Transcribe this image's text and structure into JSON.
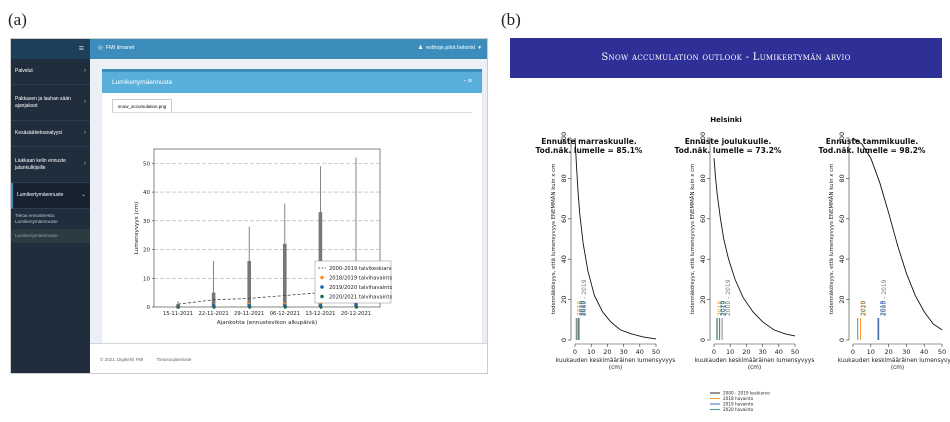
{
  "labels": {
    "a": "(a)",
    "b": "(b)"
  },
  "panel_a": {
    "sidebar": {
      "toggle_icon": "hamburger-icon",
      "items": [
        {
          "label": "Palvelut"
        },
        {
          "label": "Pakkasen ja lauhan sään ajanjaksot"
        },
        {
          "label": "Kesäsäätietoanalyysi"
        },
        {
          "label": "Liukkaan kelin ennuste jalankulkijoille"
        },
        {
          "label": "Lumikertymäennuste"
        }
      ],
      "subitems": [
        {
          "label": "Tietoa ennusteesta: Lumikertymäennuste"
        },
        {
          "label": "Lumikertymäennuste"
        }
      ]
    },
    "topbar": {
      "app_name": "FMI ilmanet",
      "user": "esthoje.pilot.helsinki"
    },
    "box": {
      "title": "Lumikertymäennuste",
      "tools": "- ≡",
      "file_tab": "snow_accumulation.png"
    },
    "footer": {
      "copyright": "© 2021. Digikehit FMI",
      "privacy": "Tietosuojaseloste"
    },
    "chart_data": {
      "type": "box",
      "categories": [
        "15-11-2021",
        "22-11-2021",
        "29-11-2021",
        "06-12-2021",
        "13-12-2021",
        "20-12-2021"
      ],
      "xlabel": "Ajankohta (ennustevikon alkupäivä)",
      "ylabel": "Lumensyvyys (cm)",
      "ylim": [
        0,
        55
      ],
      "yticks": [
        0,
        10,
        20,
        30,
        40,
        50
      ],
      "whisker_max": [
        2,
        16,
        28,
        36,
        49,
        52
      ],
      "box_upper": [
        1,
        5,
        16,
        22,
        33,
        13
      ],
      "median": [
        0,
        1,
        1,
        1,
        1,
        1
      ],
      "series": [
        {
          "name": "2000-2019 talvikeskiarvo",
          "values": [
            1,
            2.5,
            3,
            4,
            5,
            8
          ],
          "color": "#444444",
          "style": "dashed"
        },
        {
          "name": "2018/2019 talvihavainto",
          "values": [
            0,
            0.5,
            1,
            1,
            1.5,
            3
          ],
          "color": "#ff8c1a"
        },
        {
          "name": "2019/2020 talvihavainto",
          "values": [
            0,
            0.5,
            0.5,
            0.5,
            0.5,
            1
          ],
          "color": "#1f5fbf"
        },
        {
          "name": "2020/2021 talvihavainto",
          "values": [
            0,
            0,
            0,
            0,
            0,
            0
          ],
          "color": "#1a6f50"
        }
      ],
      "grid": "dashed horizontal",
      "legend_position": "bottom-right"
    }
  },
  "panel_b": {
    "banner": "Snow accumulation outlook - Lumikertymän arvio",
    "city": "Helsinki",
    "chart_data": [
      {
        "type": "line",
        "title": "Ennuste marraskuulle.",
        "subtitle": "Tod.näk. lumelle = 85.1%",
        "xlabel": "kuukauden keskimääräinen lumensyvyys (cm)",
        "ylabel": "todennäköisyys, että lumensyvyys ENEMMÄN kuin x cm",
        "xlim": [
          0,
          50
        ],
        "ylim": [
          0,
          100
        ],
        "x": [
          0,
          1,
          2,
          3,
          5,
          8,
          12,
          17,
          22,
          28,
          35,
          42,
          50
        ],
        "y": [
          100,
          85,
          72,
          62,
          48,
          34,
          22,
          14,
          9,
          5,
          3,
          1.5,
          0.5
        ],
        "vlines": [
          {
            "name": "2000 - 2019",
            "x": 2,
            "color": "#777777"
          },
          {
            "name": "2018",
            "x": 1,
            "color": "#ff8c1a"
          },
          {
            "name": "2019",
            "x": 2,
            "color": "#2a5db0"
          },
          {
            "name": "2020",
            "x": 0,
            "color": "#3a8f8f"
          }
        ]
      },
      {
        "type": "line",
        "title": "Ennuste joulukuulle.",
        "subtitle": "Tod.näk. lumelle = 73.2%",
        "xlabel": "kuukauden keskimääräinen lumensyvyys (cm)",
        "ylabel": "todennäköisyys, että lumensyvyys ENEMMÄN kuin x cm",
        "xlim": [
          0,
          50
        ],
        "ylim": [
          0,
          100
        ],
        "x": [
          0,
          1,
          2,
          4,
          6,
          9,
          13,
          18,
          24,
          30,
          37,
          44,
          50
        ],
        "y": [
          90,
          80,
          72,
          60,
          50,
          40,
          30,
          21,
          14,
          9,
          5,
          3,
          2
        ],
        "vlines": [
          {
            "name": "2000 - 2019",
            "x": 5,
            "color": "#777777"
          },
          {
            "name": "2018",
            "x": 2,
            "color": "#ff8c1a"
          },
          {
            "name": "2019",
            "x": 3,
            "color": "#2a5db0"
          },
          {
            "name": "2020",
            "x": 1,
            "color": "#3a8f8f"
          }
        ]
      },
      {
        "type": "line",
        "title": "Ennuste tammikuulle.",
        "subtitle": "Tod.näk. lumelle = 98.2%",
        "xlabel": "kuukauden keskimääräinen lumensyvyys (cm)",
        "ylabel": "todennäköisyys, että lumensyvyys ENEMMÄN kuin x cm",
        "xlim": [
          0,
          50
        ],
        "ylim": [
          0,
          100
        ],
        "x": [
          0,
          5,
          10,
          15,
          20,
          25,
          30,
          35,
          40,
          45,
          50
        ],
        "y": [
          100,
          97,
          90,
          78,
          63,
          47,
          33,
          22,
          14,
          8,
          5
        ],
        "vlines": [
          {
            "name": "2000 - 2019",
            "x": 14,
            "color": "#777777"
          },
          {
            "name": "2018",
            "x": 4,
            "color": "#ff8c1a"
          },
          {
            "name": "2019",
            "x": 14,
            "color": "#2a5db0"
          },
          {
            "name": "2020",
            "x": 2,
            "color": "#3a8f8f"
          }
        ]
      }
    ],
    "legend": [
      {
        "label": "2000 - 2019 keskiarvo",
        "color": "#111111"
      },
      {
        "label": "2018 havainto",
        "color": "#ff8c1a"
      },
      {
        "label": "2019 havainto",
        "color": "#2a5db0"
      },
      {
        "label": "2020 havainto",
        "color": "#3a8f8f"
      }
    ]
  }
}
